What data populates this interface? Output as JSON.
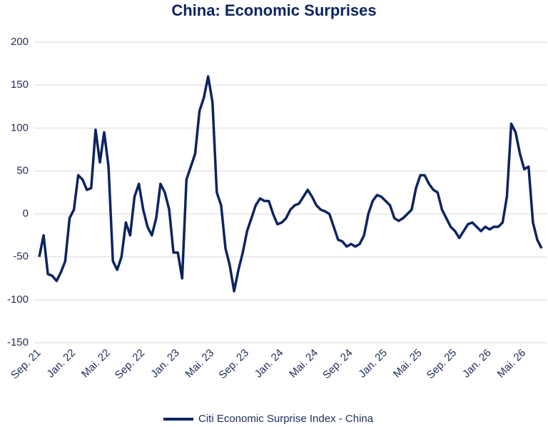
{
  "chart_data": {
    "type": "line",
    "title": "China: Economic Surprises",
    "categories": [
      "Sep. 21",
      null,
      null,
      null,
      null,
      null,
      null,
      null,
      "Jan. 22",
      null,
      null,
      null,
      null,
      null,
      null,
      null,
      "Mai. 22",
      null,
      null,
      null,
      null,
      null,
      null,
      null,
      "Sep. 22",
      null,
      null,
      null,
      null,
      null,
      null,
      null,
      "Jan. 23",
      null,
      null,
      null,
      null,
      null,
      null,
      null,
      "Mai. 23",
      null,
      null,
      null,
      null,
      null,
      null,
      null,
      "Sep. 23",
      null,
      null,
      null,
      null,
      null,
      null,
      null,
      "Jan. 24",
      null,
      null,
      null,
      null,
      null,
      null,
      null,
      "Mai. 24",
      null,
      null,
      null,
      null,
      null,
      null,
      null,
      "Sep. 24",
      null,
      null,
      null,
      null,
      null,
      null,
      null,
      "Jan. 25",
      null,
      null,
      null,
      null,
      null,
      null,
      null,
      "Mai. 25",
      null,
      null,
      null,
      null,
      null,
      null,
      null,
      "Sep. 25",
      null,
      null,
      null,
      null,
      null,
      null,
      null,
      "Jan. 26",
      null,
      null,
      null,
      null,
      null,
      null,
      null,
      "Mai. 26",
      null,
      null,
      null,
      null
    ],
    "series": [
      {
        "name": "Citi Economic Surprise Index - China",
        "color": "#0b2460",
        "values": [
          -50,
          -25,
          -70,
          -72,
          -78,
          -68,
          -55,
          -5,
          5,
          45,
          40,
          28,
          30,
          98,
          60,
          95,
          55,
          -55,
          -65,
          -50,
          -10,
          -25,
          20,
          35,
          5,
          -15,
          -25,
          -5,
          35,
          25,
          5,
          -45,
          -45,
          -75,
          40,
          55,
          70,
          120,
          135,
          160,
          130,
          25,
          10,
          -40,
          -60,
          -90,
          -65,
          -45,
          -20,
          -5,
          10,
          18,
          15,
          15,
          0,
          -12,
          -10,
          -5,
          5,
          10,
          12,
          20,
          28,
          20,
          10,
          5,
          3,
          0,
          -15,
          -30,
          -32,
          -38,
          -35,
          -38,
          -35,
          -25,
          0,
          15,
          22,
          20,
          15,
          10,
          -5,
          -8,
          -5,
          0,
          5,
          30,
          45,
          45,
          35,
          28,
          25,
          5,
          -5,
          -15,
          -20,
          -28,
          -20,
          -12,
          -10,
          -15,
          -20,
          -15,
          -18,
          -15,
          -15,
          -10,
          20,
          105,
          95,
          70,
          52,
          55,
          -10,
          -30,
          -40
        ]
      }
    ],
    "ylim": [
      -150,
      200
    ],
    "yticks": [
      -150,
      -100,
      -50,
      0,
      50,
      100,
      150,
      200
    ],
    "grid": true,
    "legend": "bottom"
  }
}
